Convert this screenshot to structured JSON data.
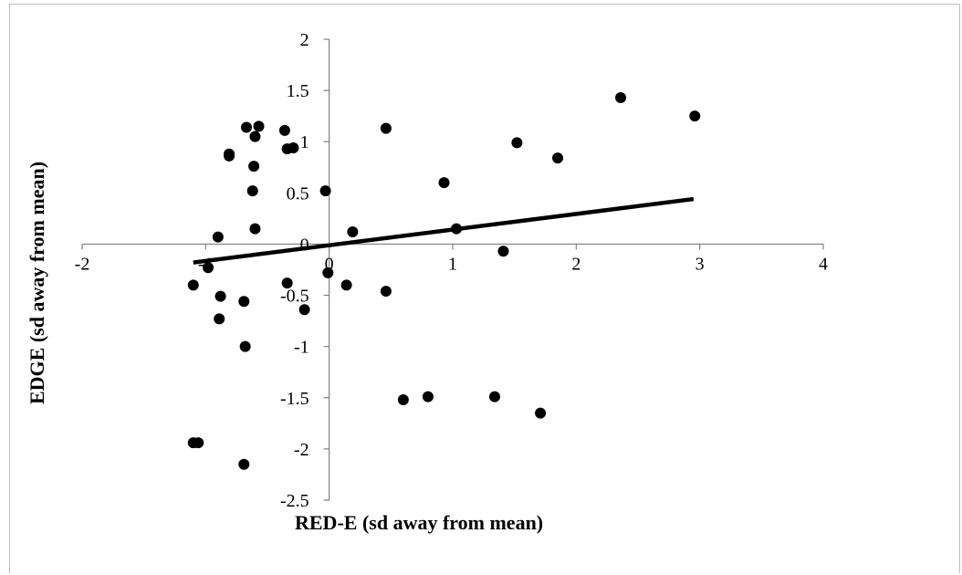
{
  "chart_data": {
    "type": "scatter",
    "title": "",
    "xlabel": "RED-E (sd away from mean)",
    "ylabel": "EDGE (sd away from mean)",
    "xlim": [
      -2,
      4
    ],
    "ylim": [
      -2.5,
      2
    ],
    "x_ticks": [
      -2,
      -1,
      0,
      1,
      2,
      3,
      4
    ],
    "y_ticks": [
      -2.5,
      -2,
      -1.5,
      -1,
      -0.5,
      0,
      0.5,
      1,
      1.5,
      2
    ],
    "grid": false,
    "legend": "none",
    "point_color": "#000000",
    "trendline": {
      "type": "linear",
      "x": [
        -1.1,
        2.95
      ],
      "y": [
        -0.18,
        0.44
      ],
      "color": "#000000"
    },
    "points": [
      {
        "x": -0.67,
        "y": 1.14
      },
      {
        "x": -0.57,
        "y": 1.15
      },
      {
        "x": -0.36,
        "y": 1.11
      },
      {
        "x": -0.6,
        "y": 1.05
      },
      {
        "x": -0.34,
        "y": 0.93
      },
      {
        "x": -0.29,
        "y": 0.94
      },
      {
        "x": -0.81,
        "y": 0.88
      },
      {
        "x": -0.81,
        "y": 0.86
      },
      {
        "x": -0.61,
        "y": 0.76
      },
      {
        "x": -0.62,
        "y": 0.52
      },
      {
        "x": -0.03,
        "y": 0.52
      },
      {
        "x": -0.6,
        "y": 0.15
      },
      {
        "x": -0.9,
        "y": 0.07
      },
      {
        "x": 0.19,
        "y": 0.12
      },
      {
        "x": -0.98,
        "y": -0.23
      },
      {
        "x": -0.01,
        "y": -0.28
      },
      {
        "x": -1.1,
        "y": -0.4
      },
      {
        "x": -0.34,
        "y": -0.38
      },
      {
        "x": 0.14,
        "y": -0.4
      },
      {
        "x": -0.88,
        "y": -0.51
      },
      {
        "x": -0.69,
        "y": -0.56
      },
      {
        "x": -0.2,
        "y": -0.64
      },
      {
        "x": -0.89,
        "y": -0.73
      },
      {
        "x": -0.68,
        "y": -1.0
      },
      {
        "x": 0.46,
        "y": -0.46
      },
      {
        "x": 0.46,
        "y": 1.13
      },
      {
        "x": 0.93,
        "y": 0.6
      },
      {
        "x": 1.03,
        "y": 0.15
      },
      {
        "x": 1.41,
        "y": -0.07
      },
      {
        "x": 1.52,
        "y": 0.99
      },
      {
        "x": 1.85,
        "y": 0.84
      },
      {
        "x": 2.36,
        "y": 1.43
      },
      {
        "x": 2.96,
        "y": 1.25
      },
      {
        "x": 0.6,
        "y": -1.52
      },
      {
        "x": 0.8,
        "y": -1.49
      },
      {
        "x": 1.34,
        "y": -1.49
      },
      {
        "x": 1.71,
        "y": -1.65
      },
      {
        "x": -1.1,
        "y": -1.94
      },
      {
        "x": -1.06,
        "y": -1.94
      },
      {
        "x": -0.69,
        "y": -2.15
      }
    ]
  }
}
